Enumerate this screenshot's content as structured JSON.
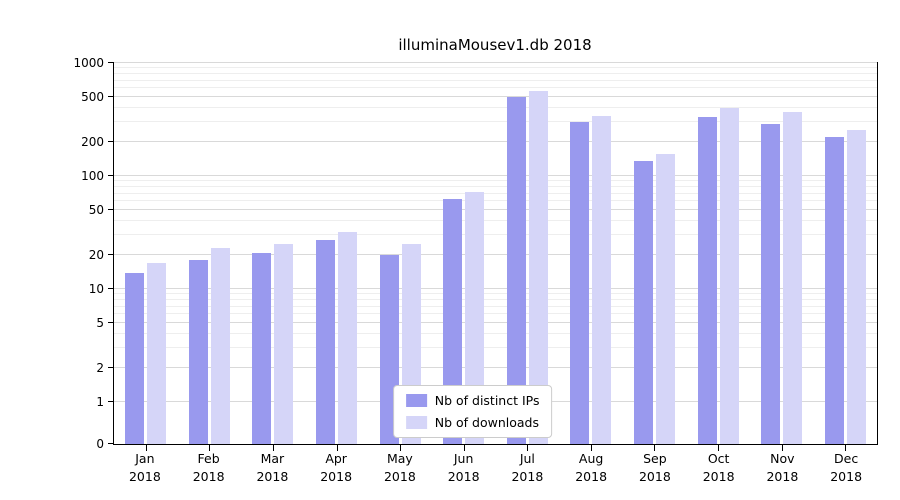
{
  "chart_data": {
    "type": "bar",
    "title": "illuminaMousev1.db 2018",
    "categories": [
      "Jan",
      "Feb",
      "Mar",
      "Apr",
      "May",
      "Jun",
      "Jul",
      "Aug",
      "Sep",
      "Oct",
      "Nov",
      "Dec"
    ],
    "year_label": "2018",
    "series": [
      {
        "name": "Nb of distinct IPs",
        "color": "#9999ee",
        "values": [
          14,
          18,
          21,
          27,
          20,
          63,
          500,
          300,
          135,
          330,
          290,
          220
        ]
      },
      {
        "name": "Nb of downloads",
        "color": "#d5d5f8",
        "values": [
          17,
          23,
          25,
          32,
          25,
          72,
          560,
          340,
          158,
          400,
          370,
          255
        ]
      }
    ],
    "yticks": [
      0,
      1,
      2,
      5,
      10,
      20,
      50,
      100,
      200,
      500,
      1000
    ],
    "ylim": [
      0,
      1000
    ],
    "scale": "symlog",
    "grid": true,
    "legend_position": "lower center",
    "axis_color": "#000000",
    "grid_major_color": "#d9d9d9",
    "grid_minor_color": "#eeeeee"
  }
}
